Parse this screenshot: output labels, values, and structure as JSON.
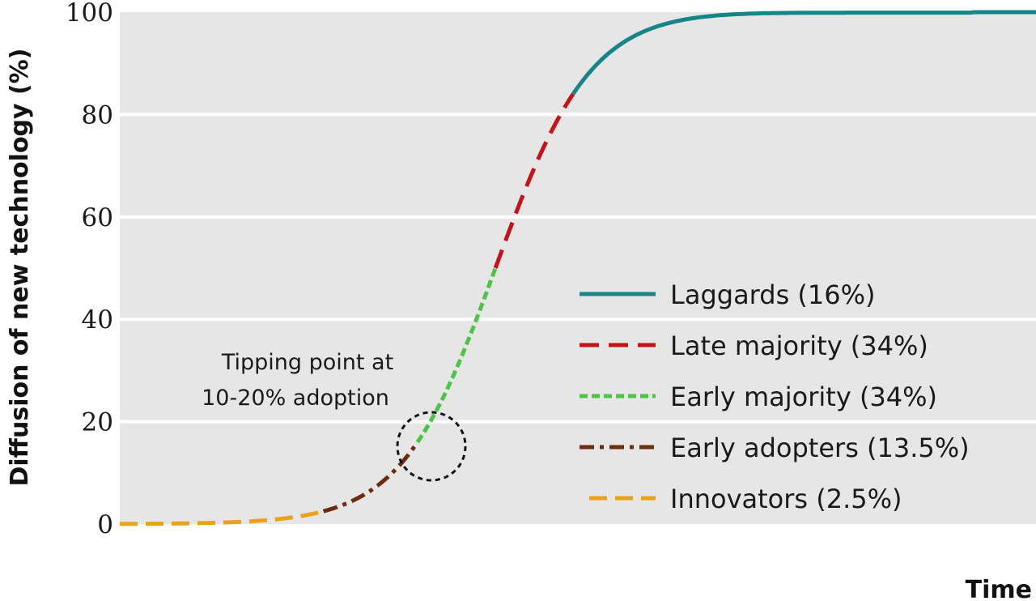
{
  "chart_data": {
    "type": "line",
    "xlabel": "Time",
    "ylabel": "Diffusion of new technology (%)",
    "ylim": [
      0,
      100
    ],
    "yticks": [
      "0",
      "20",
      "40",
      "60",
      "80",
      "100"
    ],
    "grid": "horizontal",
    "legend_position": "lower-right",
    "annotation": {
      "lines": [
        "Tipping point at",
        "10-20% adoption"
      ],
      "at_value": 15
    },
    "curve": {
      "shape": "s-curve",
      "note_x": "time axis unlabeled"
    },
    "series": [
      {
        "name": "Laggards (16%)",
        "y_range": [
          84,
          100
        ],
        "color": "#16858a",
        "style": "solid"
      },
      {
        "name": "Late majority (34%)",
        "y_range": [
          50,
          84
        ],
        "color": "#c4141b",
        "style": "dashed"
      },
      {
        "name": "Early majority (34%)",
        "y_range": [
          16,
          50
        ],
        "color": "#4bc447",
        "style": "dotted"
      },
      {
        "name": "Early adopters (13.5%)",
        "y_range": [
          2.5,
          16
        ],
        "color": "#6b2d0e",
        "style": "dash-dot"
      },
      {
        "name": "Innovators (2.5%)",
        "y_range": [
          0,
          2.5
        ],
        "color": "#e9a31b",
        "style": "long-dash"
      }
    ]
  }
}
